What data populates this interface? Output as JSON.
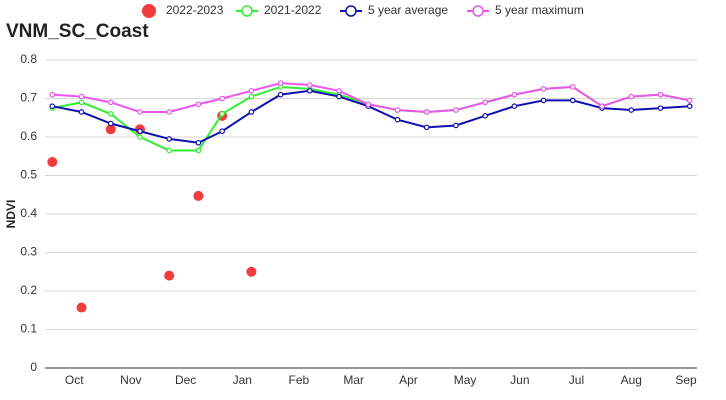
{
  "chart_data": {
    "type": "line",
    "title": "VNM_SC_Coast",
    "ylabel": "NDVI",
    "x": [
      0,
      16,
      32,
      48,
      64,
      80,
      93,
      109,
      125,
      141,
      157,
      173,
      189,
      205,
      221,
      237,
      253,
      269,
      285,
      301,
      317,
      333,
      349
    ],
    "xlim": [
      -4,
      353
    ],
    "xticks": [
      {
        "value": 12,
        "label": "Oct"
      },
      {
        "value": 43,
        "label": "Nov"
      },
      {
        "value": 73,
        "label": "Dec"
      },
      {
        "value": 104,
        "label": "Jan"
      },
      {
        "value": 135,
        "label": "Feb"
      },
      {
        "value": 165,
        "label": "Mar"
      },
      {
        "value": 195,
        "label": "Apr"
      },
      {
        "value": 226,
        "label": "May"
      },
      {
        "value": 256,
        "label": "Jun"
      },
      {
        "value": 287,
        "label": "Jul"
      },
      {
        "value": 317,
        "label": "Aug"
      },
      {
        "value": 347,
        "label": "Sep"
      }
    ],
    "ylim": [
      0,
      0.8
    ],
    "yticks": [
      0,
      0.1,
      0.2,
      0.3,
      0.4,
      0.5,
      0.6,
      0.7,
      0.8
    ],
    "grid": true,
    "legend": "top",
    "series": [
      {
        "name": "2022-2023",
        "color": "#f03c3c",
        "mode": "markers",
        "values": [
          0.535,
          0.157,
          0.62,
          0.62,
          0.24,
          0.447,
          0.655,
          0.25,
          null,
          null,
          null,
          null,
          null,
          null,
          null,
          null,
          null,
          null,
          null,
          null,
          null,
          null,
          null
        ]
      },
      {
        "name": "2021-2022",
        "color": "#33ee33",
        "mode": "lines",
        "values": [
          0.675,
          0.69,
          0.66,
          0.6,
          0.565,
          0.565,
          0.66,
          0.705,
          0.73,
          0.725,
          0.71,
          0.685,
          0.67,
          0.665,
          0.67,
          0.69,
          0.71,
          0.725,
          0.73,
          0.68,
          0.705,
          0.71,
          0.695
        ]
      },
      {
        "name": "5 year average",
        "color": "#1010b0",
        "mode": "lines",
        "values": [
          0.68,
          0.665,
          0.635,
          0.615,
          0.595,
          0.585,
          0.615,
          0.665,
          0.71,
          0.72,
          0.705,
          0.68,
          0.645,
          0.625,
          0.63,
          0.655,
          0.68,
          0.695,
          0.695,
          0.675,
          0.67,
          0.675,
          0.68
        ]
      },
      {
        "name": "5 year maximum",
        "color": "#ee55ee",
        "mode": "lines",
        "values": [
          0.71,
          0.705,
          0.69,
          0.665,
          0.665,
          0.685,
          0.7,
          0.72,
          0.74,
          0.735,
          0.72,
          0.685,
          0.67,
          0.665,
          0.67,
          0.69,
          0.71,
          0.725,
          0.73,
          0.68,
          0.705,
          0.71,
          0.695
        ]
      }
    ]
  }
}
